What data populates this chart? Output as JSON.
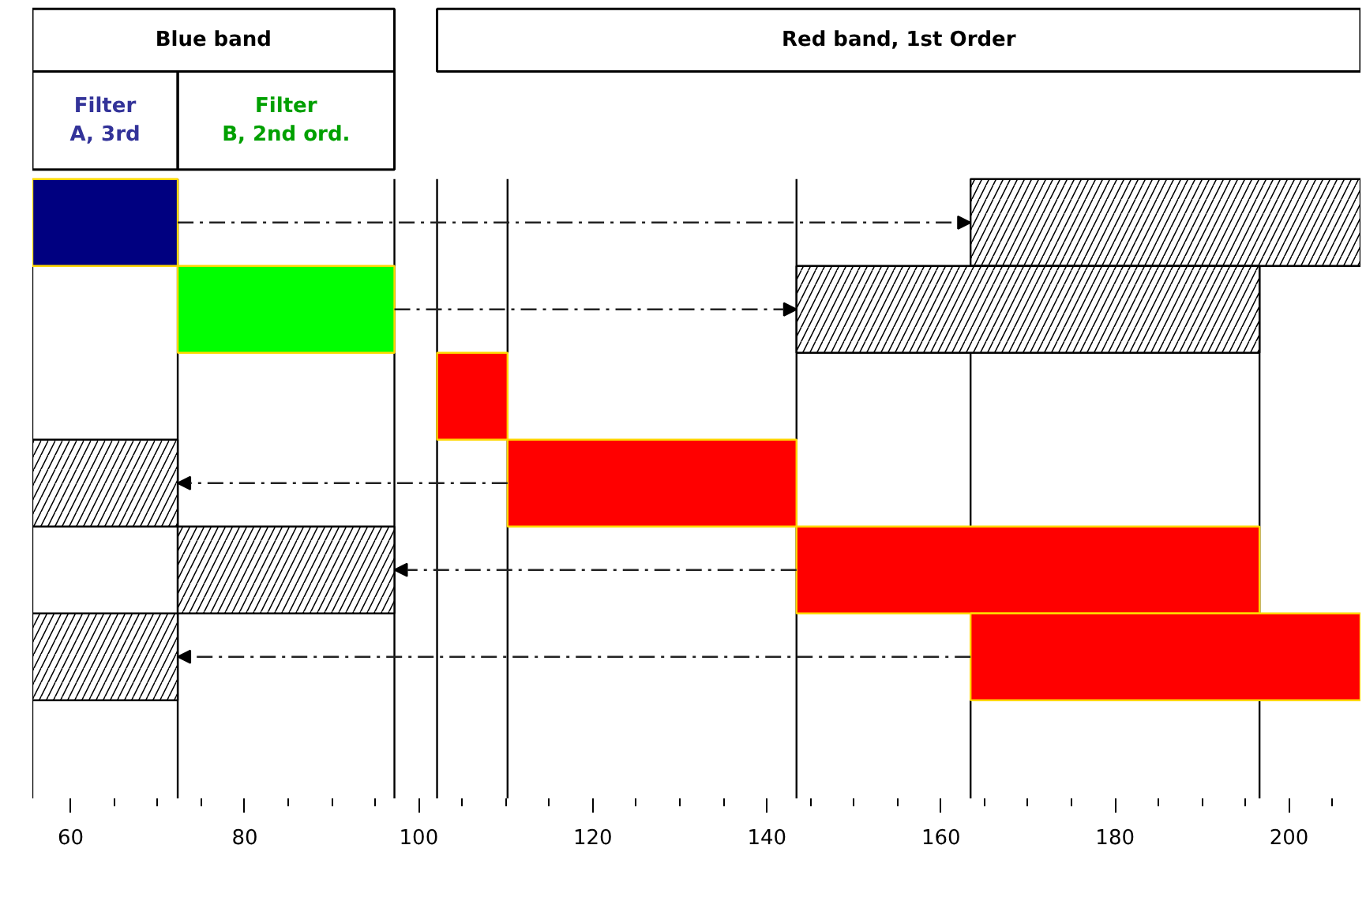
{
  "chart_data": {
    "type": "bar",
    "orientation": "horizontal",
    "categories": [
      null,
      null,
      null,
      null,
      null,
      null,
      null
    ],
    "series": [
      {
        "color": "#000080",
        "base": [
          55.6,
          null,
          null,
          null,
          null,
          null,
          null
        ],
        "values": [
          16.7,
          null,
          null,
          null,
          null,
          null,
          null
        ]
      },
      {
        "color": "#00ff00",
        "base": [
          null,
          72.3,
          null,
          null,
          null,
          null,
          null
        ],
        "values": [
          null,
          24.9,
          null,
          null,
          null,
          null,
          null
        ]
      },
      {
        "color": "#ff0000",
        "base": [
          null,
          null,
          102.1,
          110.2,
          143.4,
          163.4,
          null
        ],
        "values": [
          null,
          null,
          8.1,
          33.2,
          53.2,
          44.8,
          null
        ]
      },
      {
        "color": "#000000",
        "base": [
          163.4,
          143.4,
          null,
          55.6,
          72.3,
          55.6,
          null
        ],
        "values": [
          44.8,
          53.2,
          null,
          16.7,
          24.9,
          16.7,
          null
        ]
      }
    ],
    "xlim": [
      55.6,
      208.2
    ],
    "xticks": [
      60,
      80,
      100,
      120,
      140,
      160,
      180,
      200
    ],
    "tick_labels": "x",
    "ref_lines": [
      {
        "axis": "x",
        "value": 55.6
      },
      {
        "axis": "x",
        "value": 72.3
      },
      {
        "axis": "x",
        "value": 97.2
      },
      {
        "axis": "x",
        "value": 102.1
      },
      {
        "axis": "x",
        "value": 110.2
      },
      {
        "axis": "x",
        "value": 143.4
      },
      {
        "axis": "x",
        "value": 163.4
      },
      {
        "axis": "x",
        "value": 196.6
      }
    ],
    "annotations": [
      "Blue band",
      "Red band, 1st Order",
      "Filter\nA, 3rd",
      "Filter\nB, 2nd ord."
    ]
  }
}
